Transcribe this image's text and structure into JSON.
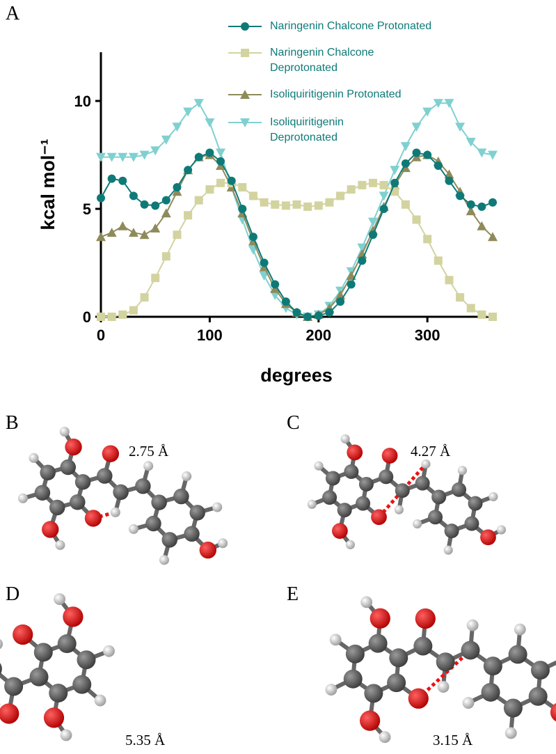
{
  "chart_data": {
    "type": "line",
    "panel_label": "A",
    "xlabel": "degrees",
    "ylabel": "kcal mol⁻¹",
    "x": [
      0,
      10,
      20,
      30,
      40,
      50,
      60,
      70,
      80,
      90,
      100,
      110,
      120,
      130,
      140,
      150,
      160,
      170,
      180,
      190,
      200,
      210,
      220,
      230,
      240,
      250,
      260,
      270,
      280,
      290,
      300,
      310,
      320,
      330,
      340,
      350,
      360
    ],
    "xlim": [
      0,
      360
    ],
    "xticks": [
      0,
      100,
      200,
      300
    ],
    "ylim": [
      0,
      12
    ],
    "yticks": [
      0,
      5,
      10
    ],
    "series": [
      {
        "name": "Naringenin Chalcone Protonated",
        "color": "#0e7a78",
        "marker": "circle",
        "values": [
          5.5,
          6.4,
          6.3,
          5.6,
          5.2,
          5.15,
          5.4,
          6.0,
          6.8,
          7.4,
          7.6,
          7.2,
          6.3,
          5.0,
          3.7,
          2.5,
          1.5,
          0.7,
          0.2,
          0,
          0.05,
          0.2,
          0.7,
          1.5,
          2.6,
          3.8,
          5.0,
          6.2,
          7.1,
          7.6,
          7.5,
          7.0,
          6.3,
          5.6,
          5.2,
          5.1,
          5.3
        ]
      },
      {
        "name": "Naringenin Chalcone Deprotonated",
        "color": "#d3d3a0",
        "marker": "square",
        "values": [
          0,
          0,
          0.1,
          0.3,
          0.9,
          1.8,
          2.8,
          3.8,
          4.7,
          5.4,
          5.9,
          6.2,
          6.2,
          6.0,
          5.6,
          5.3,
          5.2,
          5.15,
          5.2,
          5.1,
          5.15,
          5.3,
          5.6,
          5.9,
          6.1,
          6.2,
          6.1,
          5.8,
          5.2,
          4.5,
          3.6,
          2.6,
          1.7,
          0.9,
          0.4,
          0.1,
          0
        ]
      },
      {
        "name": "Isoliquiritigenin Protonated",
        "color": "#8f8a5a",
        "marker": "triangle",
        "values": [
          3.7,
          3.9,
          4.2,
          3.9,
          3.8,
          4.1,
          4.8,
          5.8,
          6.8,
          7.4,
          7.5,
          7.0,
          6.0,
          4.8,
          3.5,
          2.3,
          1.3,
          0.6,
          0.2,
          0,
          0.1,
          0.4,
          1.0,
          1.9,
          2.9,
          4.0,
          5.1,
          6.1,
          6.9,
          7.4,
          7.5,
          7.2,
          6.6,
          5.8,
          4.9,
          4.2,
          3.7
        ]
      },
      {
        "name": "Isoliquiritigenin Deprotonated",
        "color": "#80d0d0",
        "marker": "triangle-down",
        "values": [
          7.4,
          7.4,
          7.4,
          7.4,
          7.5,
          7.7,
          8.2,
          8.8,
          9.5,
          9.9,
          9.0,
          7.6,
          6.0,
          4.5,
          3.1,
          1.9,
          1.0,
          0.4,
          0.1,
          0,
          0.1,
          0.5,
          1.2,
          2.1,
          3.2,
          4.4,
          5.6,
          6.8,
          7.9,
          8.8,
          9.5,
          9.9,
          9.9,
          8.8,
          8.1,
          7.6,
          7.5
        ]
      }
    ]
  },
  "panels": [
    {
      "label": "B",
      "distance": "2.75 Å"
    },
    {
      "label": "C",
      "distance": "4.27 Å"
    },
    {
      "label": "D",
      "distance": "5.35 Å"
    },
    {
      "label": "E",
      "distance": "3.15 Å"
    }
  ]
}
